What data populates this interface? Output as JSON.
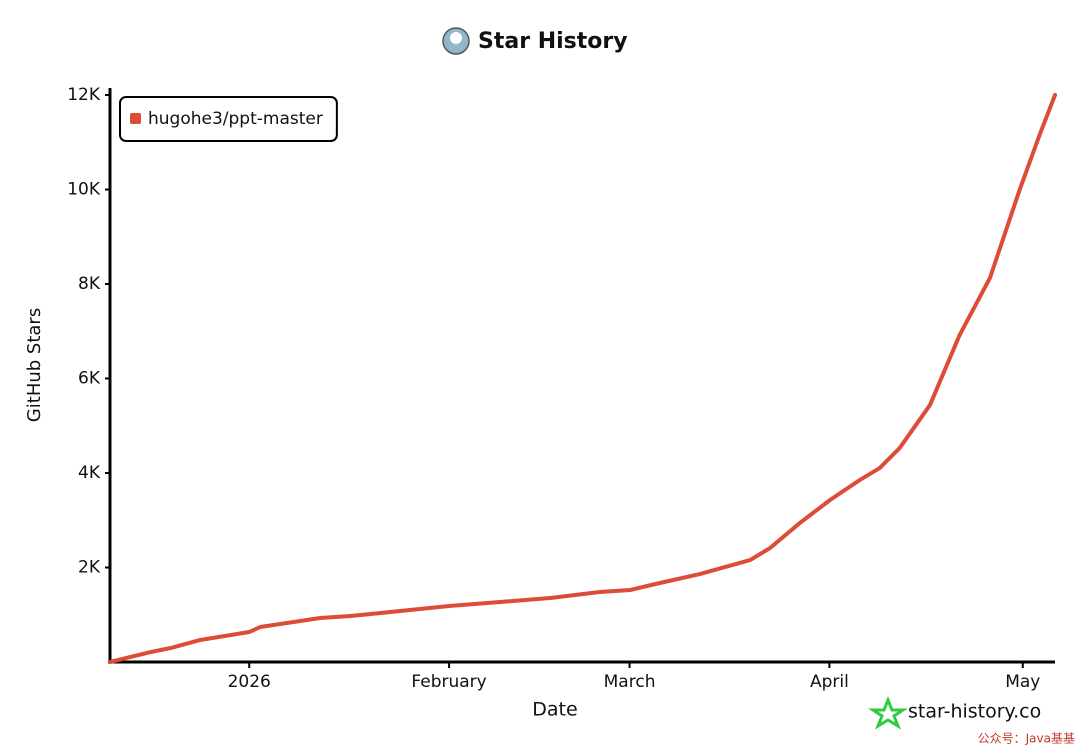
{
  "chart_data": {
    "type": "line",
    "title": "Star History",
    "x_label": "Date",
    "y_label": "GitHub Stars",
    "x": [
      -21.6,
      -15.3,
      -12.2,
      -7.6,
      0,
      1.7,
      11,
      15.7,
      23.4,
      31,
      38.9,
      46.7,
      54.4,
      59.1,
      63.7,
      69.9,
      77.7,
      80.8,
      85.4,
      90.1,
      94.7,
      97.8,
      100.9,
      105.6,
      110.2,
      114.9,
      119.5,
      122.6,
      125
    ],
    "series": [
      {
        "name": "hugohe3/ppt-master",
        "color": "#dd4b39",
        "values": [
          0,
          210,
          296,
          466,
          635,
          740,
          931,
          973,
          1079,
          1185,
          1270,
          1354,
          1481,
          1524,
          1672,
          1862,
          2158,
          2412,
          2941,
          3428,
          3851,
          4105,
          4528,
          5438,
          6919,
          8125,
          9987,
          11151,
          12000
        ]
      }
    ],
    "xlim": [
      -21.6,
      125
    ],
    "xticks": [
      {
        "value": 0,
        "label": "2026"
      },
      {
        "value": 31,
        "label": "February"
      },
      {
        "value": 59,
        "label": "March"
      },
      {
        "value": 90,
        "label": "April"
      },
      {
        "value": 120,
        "label": "May"
      }
    ],
    "ylim": [
      0,
      12000
    ],
    "yticks": [
      {
        "value": 2000,
        "label": "2K"
      },
      {
        "value": 4000,
        "label": "4K"
      },
      {
        "value": 6000,
        "label": "6K"
      },
      {
        "value": 8000,
        "label": "8K"
      },
      {
        "value": 10000,
        "label": "10K"
      },
      {
        "value": 12000,
        "label": "12K"
      }
    ],
    "grid": false,
    "legend": "top-left",
    "watermark": "star-history.co",
    "footer": "公众号：Java基基"
  }
}
